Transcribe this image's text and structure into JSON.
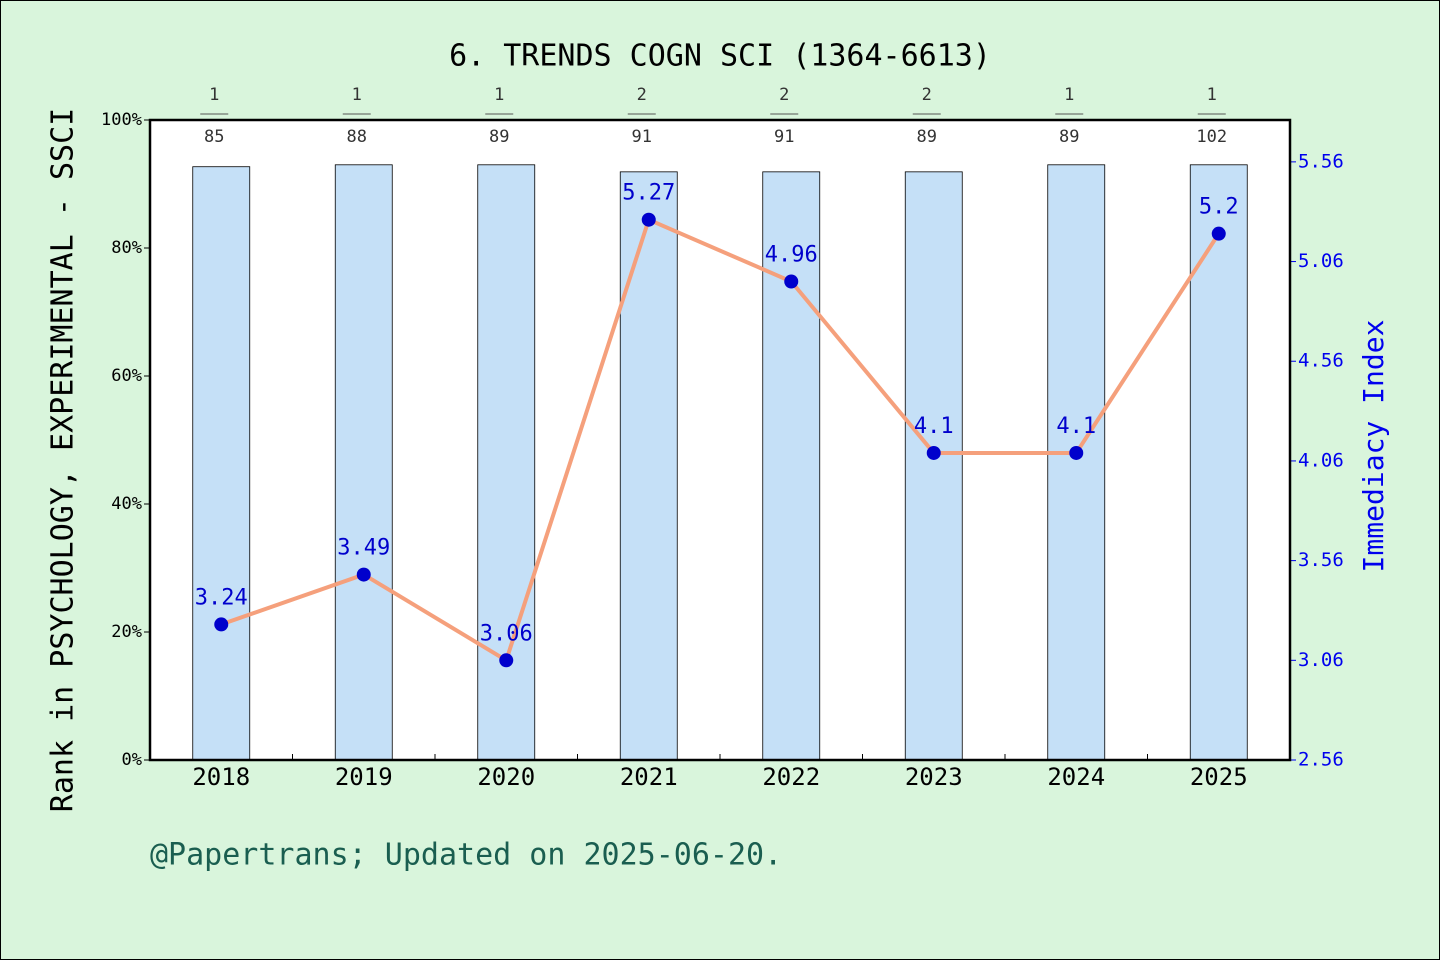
{
  "chart_data": {
    "type": "bar",
    "title": "6. TRENDS COGN SCI (1364-6613)",
    "y_label": "Rank in PSYCHOLOGY, EXPERIMENTAL - SSCI",
    "y2_label": "Immediacy Index",
    "footer": "@Papertrans; Updated on 2025-06-20.",
    "categories": [
      "2018",
      "2019",
      "2020",
      "2021",
      "2022",
      "2023",
      "2024",
      "2025"
    ],
    "ranks": [
      1,
      1,
      1,
      2,
      2,
      2,
      1,
      1
    ],
    "totals": [
      85,
      88,
      89,
      91,
      91,
      89,
      89,
      102
    ],
    "series": [
      {
        "type": "bar",
        "color": "#c5e0f7",
        "values": [
          92.7,
          93.0,
          93.0,
          91.9,
          91.9,
          91.9,
          93.0,
          93.0
        ]
      },
      {
        "type": "line",
        "axis": "y2",
        "color": "#f5a07c",
        "marker_color": "#0000cc",
        "values": [
          3.24,
          3.49,
          3.06,
          5.27,
          4.96,
          4.1,
          4.1,
          5.2
        ]
      }
    ],
    "ylim": [
      0,
      100
    ],
    "yticks": [
      {
        "value": 0,
        "label": "0%"
      },
      {
        "value": 20,
        "label": "20%"
      },
      {
        "value": 40,
        "label": "40%"
      },
      {
        "value": 60,
        "label": "60%"
      },
      {
        "value": 80,
        "label": "80%"
      },
      {
        "value": 100,
        "label": "100%"
      }
    ],
    "y2lim": [
      2.56,
      5.77
    ],
    "y2ticks": [
      2.56,
      3.06,
      3.56,
      4.06,
      4.56,
      5.06,
      5.56
    ]
  }
}
